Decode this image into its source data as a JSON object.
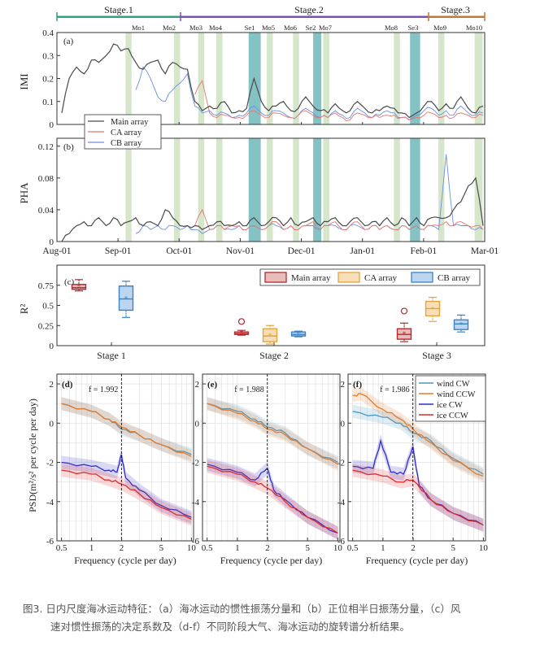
{
  "caption": {
    "line1": "图3. 日内尺度海冰运动特征：（a）海冰运动的惯性振荡分量和（b）正位相半日振荡分量，（c）风",
    "line2": "速对惯性振荡的决定系数及（d-f）不同阶段大气、海冰运动的旋转谱分析结果。"
  },
  "colors": {
    "main": "#4a4a4a",
    "ca": "#e8746a",
    "cb": "#6b8fe3",
    "stage1": "#2fa184",
    "stage2": "#7f4fb8",
    "stage3": "#c7782f",
    "teal_band": "#6fb7b8",
    "green_band": "#c8ddb9",
    "box_main": "#b02a30",
    "box_ca": "#e7a33c",
    "box_cb": "#3a82c9",
    "wind_cw": "#4a98c4",
    "wind_ccw": "#e37b2e",
    "ice_cw": "#2f2fc8",
    "ice_ccw": "#e02a2a"
  },
  "chart_data": [
    {
      "panel": "(a)",
      "type": "line",
      "ylabel": "IMI",
      "ylim": [
        0,
        0.4
      ],
      "yticks": [
        "0",
        "0.1",
        "0.2",
        "0.3",
        "0.4"
      ],
      "xticks": [
        "Aug-01",
        "Sep-01",
        "Oct-01",
        "Nov-01",
        "Dec-01",
        "Jan-01",
        "Feb-01",
        "Mar-01"
      ],
      "stages": [
        "Stage.1",
        "Stage.2",
        "Stage.3"
      ],
      "events": [
        "Mo1",
        "Mo2",
        "Mo3",
        "Mo4",
        "Se1",
        "Mo5",
        "Mo6",
        "Se2",
        "Mo7",
        "Mo8",
        "Se3",
        "Mo9",
        "Mo10"
      ],
      "legend": [
        "Main array",
        "CA array",
        "CB array"
      ],
      "series": [
        {
          "name": "Main array",
          "values": [
            0.05,
            0.2,
            0.25,
            0.22,
            0.28,
            0.27,
            0.3,
            0.35,
            0.32,
            0.33,
            0.27,
            0.24,
            0.27,
            0.28,
            0.22,
            0.27,
            0.25,
            0.24,
            0.1,
            0.06,
            0.08,
            0.07,
            0.1,
            0.05,
            0.06,
            0.07,
            0.2,
            0.1,
            0.06,
            0.08,
            0.1,
            0.06,
            0.07,
            0.12,
            0.08,
            0.06,
            0.05,
            0.09,
            0.06,
            0.06,
            0.1,
            0.07,
            0.05,
            0.06,
            0.08,
            0.07,
            0.05,
            0.03,
            0.05,
            0.08,
            0.1,
            0.06,
            0.09,
            0.07,
            0.12,
            0.07,
            0.05,
            0.08
          ]
        },
        {
          "name": "CA array",
          "values": [
            null,
            null,
            null,
            null,
            null,
            null,
            null,
            null,
            null,
            null,
            null,
            null,
            null,
            null,
            null,
            null,
            null,
            null,
            0.13,
            0.19,
            0.05,
            0.03,
            0.04,
            0.03,
            0.03,
            0.04,
            0.06,
            0.04,
            0.03,
            0.05,
            0.04,
            0.03,
            0.04,
            0.06,
            0.04,
            0.03,
            0.03,
            0.05,
            0.03,
            0.02,
            0.05,
            0.04,
            0.03,
            0.03,
            0.04,
            0.04,
            0.03,
            0.02,
            0.03,
            0.04,
            0.05,
            0.03,
            0.04,
            0.03,
            0.05,
            0.04,
            0.03,
            0.04
          ]
        },
        {
          "name": "CB array",
          "values": [
            null,
            null,
            null,
            null,
            null,
            null,
            null,
            null,
            null,
            null,
            0.15,
            0.25,
            0.2,
            0.12,
            0.1,
            0.15,
            0.18,
            0.22,
            0.08,
            0.05,
            0.06,
            0.04,
            0.05,
            0.03,
            0.04,
            0.05,
            0.08,
            0.05,
            0.04,
            0.06,
            0.05,
            0.03,
            0.04,
            0.07,
            0.05,
            0.03,
            0.03,
            0.06,
            0.04,
            0.03,
            0.07,
            0.05,
            0.03,
            0.04,
            0.06,
            0.05,
            0.03,
            0.02,
            0.04,
            0.06,
            0.07,
            0.04,
            0.06,
            0.04,
            0.08,
            0.05,
            0.04,
            0.05
          ]
        }
      ]
    },
    {
      "panel": "(b)",
      "type": "line",
      "ylabel": "PHA",
      "ylim": [
        0,
        0.13
      ],
      "yticks": [
        "0",
        "0.04",
        "0.08",
        "0.12"
      ],
      "series": [
        {
          "name": "Main array",
          "values": [
            0.0,
            0.01,
            0.02,
            0.025,
            0.02,
            0.03,
            0.02,
            0.03,
            0.02,
            0.025,
            0.03,
            0.02,
            0.025,
            0.02,
            0.04,
            0.03,
            0.02,
            0.02,
            0.02,
            0.015,
            0.02,
            0.025,
            0.02,
            0.02,
            0.025,
            0.02,
            0.03,
            0.02,
            0.025,
            0.03,
            0.02,
            0.03,
            0.02,
            0.025,
            0.03,
            0.02,
            0.025,
            0.03,
            0.02,
            0.025,
            0.03,
            0.02,
            0.025,
            0.02,
            0.03,
            0.02,
            0.03,
            0.02,
            0.03,
            0.02,
            0.03,
            0.03,
            0.03,
            0.04,
            0.05,
            0.07,
            0.08,
            0.02
          ]
        },
        {
          "name": "CA array",
          "values": [
            null,
            null,
            null,
            null,
            null,
            null,
            null,
            null,
            null,
            null,
            null,
            null,
            null,
            null,
            null,
            null,
            null,
            null,
            0.02,
            0.04,
            0.015,
            0.02,
            0.015,
            0.02,
            0.02,
            0.015,
            0.02,
            0.015,
            0.02,
            0.025,
            0.015,
            0.02,
            0.015,
            0.02,
            0.025,
            0.015,
            0.02,
            0.025,
            0.015,
            0.02,
            0.025,
            0.015,
            0.02,
            0.015,
            0.02,
            0.015,
            0.02,
            0.015,
            0.02,
            0.015,
            0.02,
            0.02,
            0.025,
            0.02,
            0.025,
            0.02,
            0.02,
            0.015
          ]
        },
        {
          "name": "CB array",
          "values": [
            null,
            null,
            null,
            null,
            null,
            null,
            null,
            null,
            null,
            null,
            0.01,
            0.02,
            0.015,
            0.02,
            0.015,
            0.02,
            0.015,
            0.02,
            0.015,
            0.01,
            0.015,
            0.02,
            0.015,
            0.015,
            0.02,
            0.015,
            0.02,
            0.015,
            0.02,
            0.02,
            0.015,
            0.02,
            0.015,
            0.02,
            0.02,
            0.015,
            0.02,
            0.02,
            0.015,
            0.02,
            0.02,
            0.015,
            0.02,
            0.015,
            0.02,
            0.015,
            0.02,
            0.015,
            0.02,
            0.015,
            0.02,
            0.015,
            0.11,
            0.02,
            0.02,
            0.02,
            0.015,
            0.015
          ]
        }
      ]
    },
    {
      "panel": "(c)",
      "type": "box",
      "ylabel": "R²",
      "ylim": [
        0,
        1
      ],
      "yticks": [
        "0",
        "0.25",
        "0.5",
        "0.75"
      ],
      "categories": [
        "Stage 1",
        "Stage 2",
        "Stage 3"
      ],
      "legend": [
        "Main array",
        "CA array",
        "CB array"
      ],
      "boxes": [
        {
          "stage": "Stage 1",
          "series": "Main array",
          "min": 0.68,
          "q1": 0.7,
          "median": 0.72,
          "q3": 0.76,
          "max": 0.82,
          "mean": 0.73
        },
        {
          "stage": "Stage 1",
          "series": "CB array",
          "min": 0.35,
          "q1": 0.44,
          "median": 0.58,
          "q3": 0.74,
          "max": 0.8,
          "mean": 0.58
        },
        {
          "stage": "Stage 2",
          "series": "Main array",
          "min": 0.13,
          "q1": 0.14,
          "median": 0.15,
          "q3": 0.17,
          "max": 0.19,
          "mean": 0.155,
          "outlier": 0.3
        },
        {
          "stage": "Stage 2",
          "series": "CA array",
          "min": 0.02,
          "q1": 0.05,
          "median": 0.12,
          "q3": 0.21,
          "max": 0.25,
          "mean": 0.12
        },
        {
          "stage": "Stage 2",
          "series": "CB array",
          "min": 0.11,
          "q1": 0.12,
          "median": 0.14,
          "q3": 0.17,
          "max": 0.18,
          "mean": 0.145
        },
        {
          "stage": "Stage 3",
          "series": "Main array",
          "min": 0.05,
          "q1": 0.08,
          "median": 0.14,
          "q3": 0.21,
          "max": 0.28,
          "mean": 0.14,
          "outlier": 0.43
        },
        {
          "stage": "Stage 3",
          "series": "CA array",
          "min": 0.3,
          "q1": 0.37,
          "median": 0.46,
          "q3": 0.55,
          "max": 0.6,
          "mean": 0.45
        },
        {
          "stage": "Stage 3",
          "series": "CB array",
          "min": 0.17,
          "q1": 0.2,
          "median": 0.27,
          "q3": 0.32,
          "max": 0.38,
          "mean": 0.26
        }
      ]
    },
    {
      "panel": "(d)",
      "type": "line",
      "xscale": "log",
      "xlabel": "Frequency (cycle per day)",
      "xticks": [
        "0.5",
        "1",
        "2",
        "5",
        "10"
      ],
      "ylabel": "PSD(m²/s² per cycle per day)",
      "yticks": [
        "2",
        "0",
        "-2",
        "-4",
        "-6"
      ],
      "ylim": [
        -6,
        2.5
      ],
      "annotation": "f = 1.992",
      "marker_x": 1.992,
      "series": [
        {
          "name": "wind CW",
          "x": [
            0.5,
            1,
            1.5,
            1.992,
            3,
            5,
            10
          ],
          "y": [
            1.0,
            0.6,
            0.2,
            -0.3,
            -0.6,
            -1.1,
            -1.6
          ]
        },
        {
          "name": "wind CCW",
          "x": [
            0.5,
            1,
            1.5,
            1.992,
            3,
            5,
            10
          ],
          "y": [
            1.0,
            0.6,
            0.2,
            -0.2,
            -0.6,
            -1.1,
            -1.7
          ]
        },
        {
          "name": "ice CW",
          "x": [
            0.5,
            1,
            1.5,
            1.8,
            1.992,
            2.2,
            3,
            5,
            10
          ],
          "y": [
            -2.0,
            -2.2,
            -2.4,
            -2.5,
            -1.6,
            -2.8,
            -3.4,
            -4.2,
            -4.8
          ]
        },
        {
          "name": "ice CCW",
          "x": [
            0.5,
            1,
            1.5,
            1.992,
            3,
            5,
            10
          ],
          "y": [
            -2.4,
            -2.6,
            -2.9,
            -3.1,
            -3.6,
            -4.3,
            -4.9
          ]
        }
      ]
    },
    {
      "panel": "(e)",
      "type": "line",
      "xscale": "log",
      "xlabel": "Frequency (cycle per day)",
      "xticks": [
        "0.5",
        "1",
        "2",
        "5",
        "10"
      ],
      "yticks": [
        "2",
        "0",
        "-2",
        "-4",
        "-6"
      ],
      "ylim": [
        -6,
        2.5
      ],
      "annotation": "f = 1.988",
      "marker_x": 1.988,
      "series": [
        {
          "name": "wind CW",
          "x": [
            0.5,
            1,
            1.5,
            1.988,
            3,
            5,
            10
          ],
          "y": [
            1.0,
            0.6,
            0.2,
            -0.2,
            -0.5,
            -1.3,
            -2.0
          ]
        },
        {
          "name": "wind CCW",
          "x": [
            0.5,
            1,
            1.5,
            1.988,
            3,
            5,
            10
          ],
          "y": [
            1.0,
            0.5,
            0.1,
            -0.3,
            -0.6,
            -1.3,
            -2.1
          ]
        },
        {
          "name": "ice CW",
          "x": [
            0.5,
            1,
            1.5,
            1.988,
            2.3,
            3,
            5,
            10
          ],
          "y": [
            -2.1,
            -2.5,
            -2.9,
            -2.3,
            -3.4,
            -3.9,
            -4.8,
            -5.6
          ]
        },
        {
          "name": "ice CCW",
          "x": [
            0.5,
            1,
            1.5,
            1.988,
            3,
            5,
            10
          ],
          "y": [
            -2.2,
            -2.6,
            -3.0,
            -3.3,
            -4.0,
            -4.8,
            -5.6
          ]
        }
      ]
    },
    {
      "panel": "(f)",
      "type": "line",
      "xscale": "log",
      "xlabel": "Frequency (cycle per day)",
      "xticks": [
        "0.5",
        "1",
        "2",
        "5",
        "10"
      ],
      "yticks": [
        "2",
        "0",
        "-2",
        "-4",
        "-6"
      ],
      "ylim": [
        -6,
        2.5
      ],
      "annotation": "f = 1.986",
      "marker_x": 1.986,
      "legend": [
        "wind CW",
        "wind CCW",
        "ice CW",
        "ice CCW"
      ],
      "series": [
        {
          "name": "wind CW",
          "x": [
            0.5,
            1,
            1.5,
            1.986,
            3,
            5,
            10
          ],
          "y": [
            0.6,
            0.3,
            0.0,
            -0.5,
            -0.9,
            -1.8,
            -2.6
          ]
        },
        {
          "name": "wind CCW",
          "x": [
            0.5,
            0.6,
            1,
            1.5,
            1.986,
            3,
            5,
            10
          ],
          "y": [
            1.4,
            1.5,
            0.7,
            0.2,
            -0.3,
            -1.0,
            -1.9,
            -2.7
          ]
        },
        {
          "name": "ice CW",
          "x": [
            0.5,
            0.8,
            0.95,
            1.2,
            1.6,
            1.986,
            2.3,
            3,
            5,
            10
          ],
          "y": [
            -2.2,
            -2.3,
            -0.9,
            -2.5,
            -2.6,
            -1.2,
            -3.2,
            -3.9,
            -4.6,
            -5.2
          ]
        },
        {
          "name": "ice CCW",
          "x": [
            0.5,
            1,
            1.5,
            1.986,
            3,
            5,
            10
          ],
          "y": [
            -2.4,
            -2.7,
            -3.0,
            -2.9,
            -3.9,
            -4.6,
            -5.2
          ]
        }
      ]
    }
  ]
}
